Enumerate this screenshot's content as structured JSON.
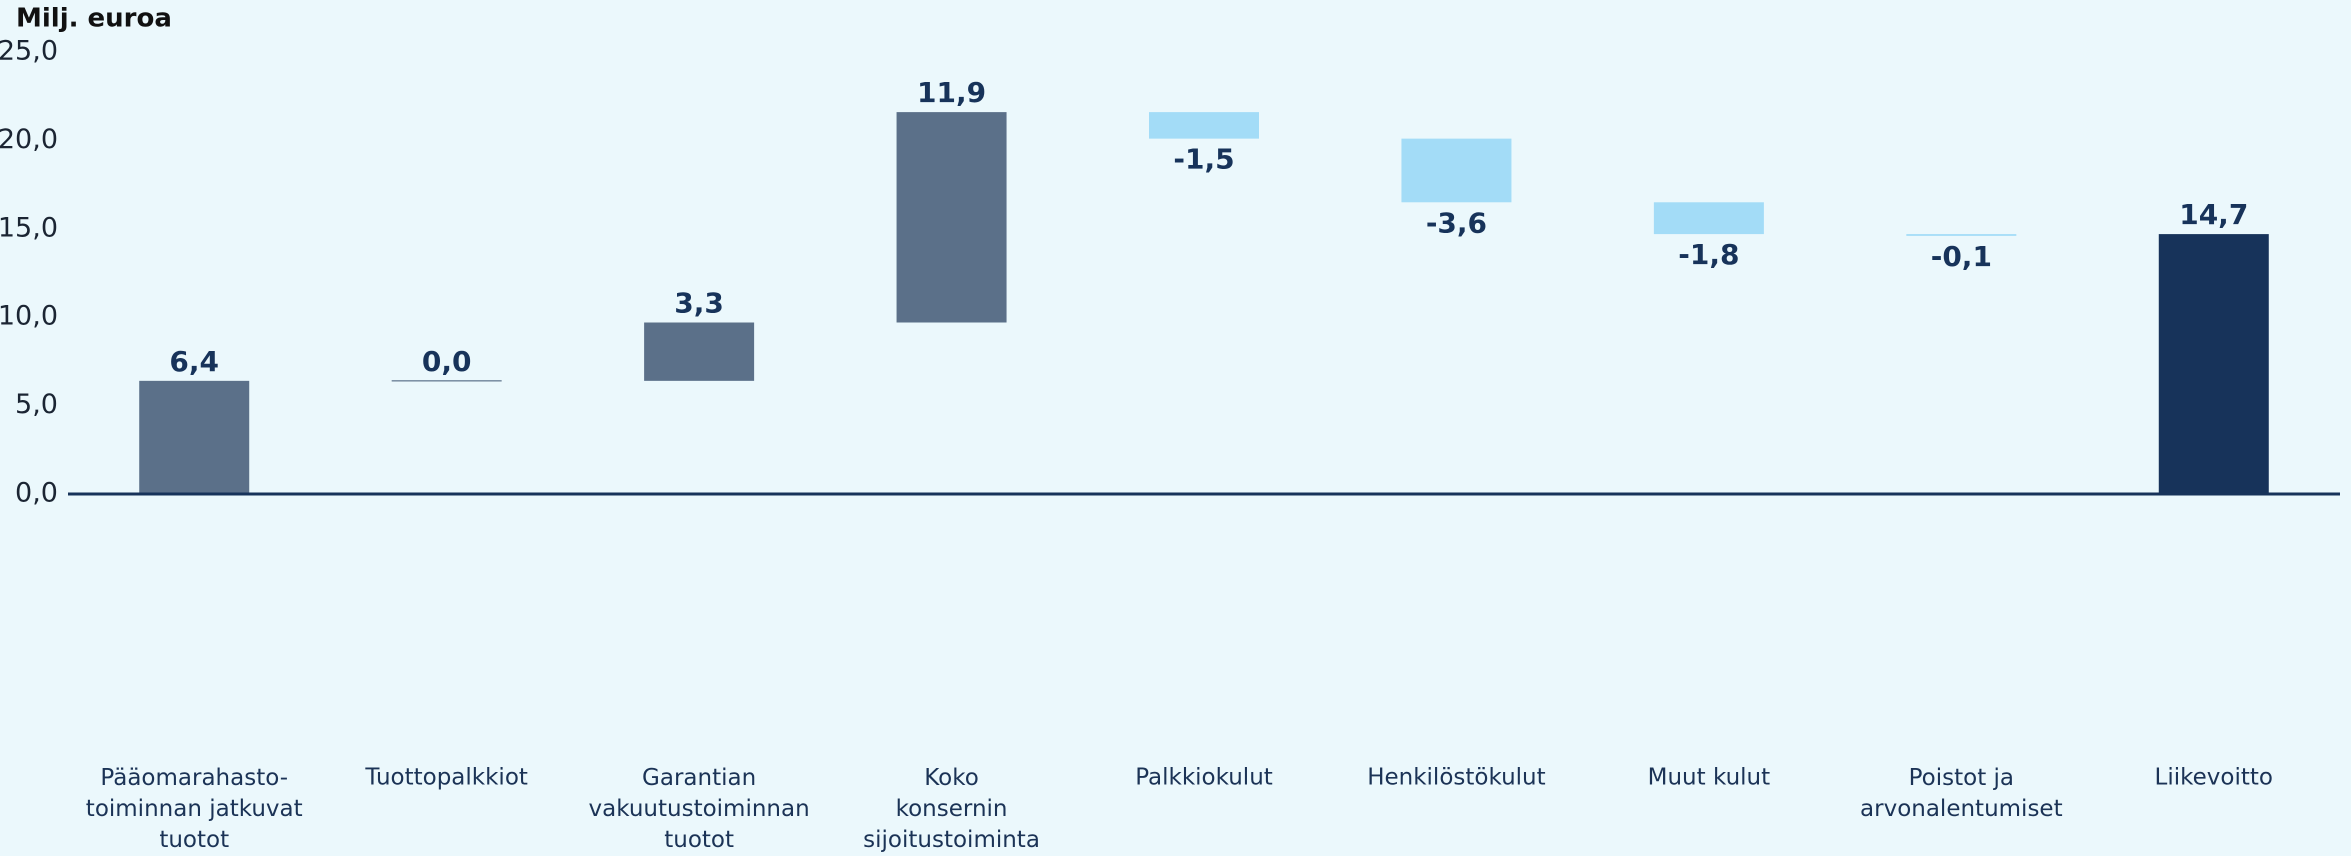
{
  "chart_data": {
    "type": "waterfall",
    "y_axis_label": "Milj. euroa",
    "categories": [
      "Pääomarahasto-\ntoiminnan jatkuvat\ntuotot",
      "Tuottopalkkiot",
      "Garantian\nvakuutustoiminnan\ntuotot",
      "Koko\nkonsernin\nsijoitustoiminta",
      "Palkkiokulut",
      "Henkilöstökulut",
      "Muut kulut",
      "Poistot ja\narvonalentumiset",
      "Liikevoitto"
    ],
    "values": [
      6.4,
      0.0,
      3.3,
      11.9,
      -1.5,
      -3.6,
      -1.8,
      -0.1,
      14.7
    ],
    "value_labels": [
      "6,4",
      "0,0",
      "3,3",
      "11,9",
      "-1,5",
      "-3,6",
      "-1,8",
      "-0,1",
      "14,7"
    ],
    "totals": [
      false,
      false,
      false,
      false,
      false,
      false,
      false,
      false,
      true
    ],
    "colors": [
      "#5b7089",
      "#5b7089",
      "#5b7089",
      "#5b7089",
      "#a3dcf7",
      "#a3dcf7",
      "#a3dcf7",
      "#a3dcf7",
      "#17335a"
    ],
    "ylim": [
      0,
      25
    ],
    "yticks": [
      {
        "value": 0,
        "label": "0,0"
      },
      {
        "value": 5,
        "label": "5,0"
      },
      {
        "value": 10,
        "label": "10,0"
      },
      {
        "value": 15,
        "label": "15,0"
      },
      {
        "value": 20,
        "label": "20,0"
      },
      {
        "value": 25,
        "label": "25,0"
      }
    ]
  }
}
